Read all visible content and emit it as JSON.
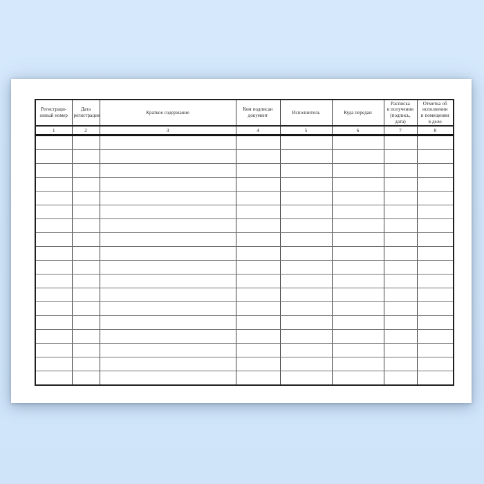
{
  "page": {
    "background_color": "#d2e7fb",
    "paper_color": "#ffffff",
    "border_color": "#1f1f1f"
  },
  "table": {
    "title": "",
    "data_row_count": 18,
    "columns": [
      {
        "number": "1",
        "label": "Регистрационный номер",
        "lines": [
          "Регистраци-",
          "онный номер"
        ]
      },
      {
        "number": "2",
        "label": "Дата регистрации",
        "lines": [
          "Дата",
          "регистрации"
        ]
      },
      {
        "number": "3",
        "label": "Краткое содержание",
        "lines": [
          "Краткое содержание"
        ]
      },
      {
        "number": "4",
        "label": "Кем подписан документ",
        "lines": [
          "Кем подписан",
          "документ"
        ]
      },
      {
        "number": "5",
        "label": "Исполнитель",
        "lines": [
          "Исполнитель"
        ]
      },
      {
        "number": "6",
        "label": "Куда передан",
        "lines": [
          "Куда передан"
        ]
      },
      {
        "number": "7",
        "label": "Расписка в получении (подпись, дата)",
        "lines": [
          "Расписка",
          "в получении",
          "(подпись,",
          "дата)"
        ]
      },
      {
        "number": "8",
        "label": "Отметка об исполнении и помещении в дело",
        "lines": [
          "Отметка об",
          "исполнении",
          "и помещении",
          "в дело"
        ]
      }
    ]
  }
}
